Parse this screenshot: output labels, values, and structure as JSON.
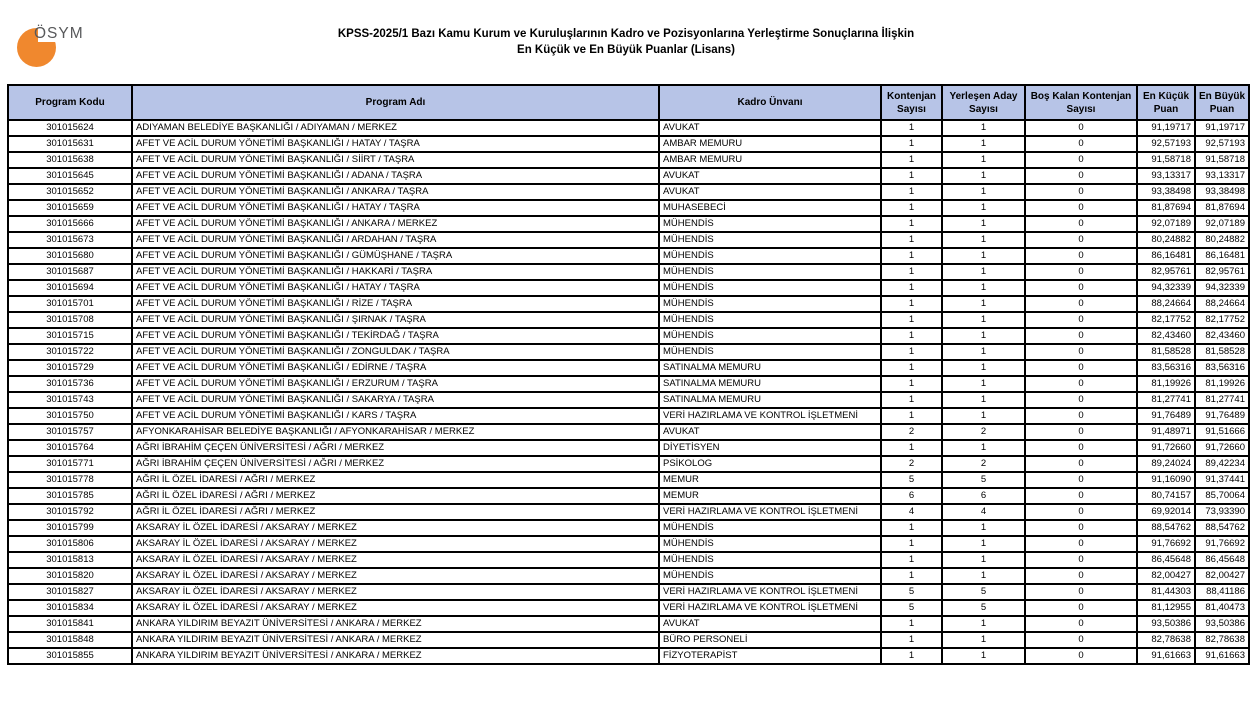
{
  "page": {
    "logo_text": "ÖSYM",
    "title_line1": "KPSS-2025/1 Bazı Kamu Kurum ve Kuruluşlarının Kadro ve Pozisyonlarına Yerleştirme Sonuçlarına İlişkin",
    "title_line2": "En Küçük ve En Büyük Puanlar (Lisans)"
  },
  "colors": {
    "logo_orange": "#f0882e",
    "logo_text_gray": "#58595b",
    "table_header_bg": "#b7c4e7",
    "table_border": "#000000"
  },
  "table": {
    "columns": [
      "Program Kodu",
      "Program Adı",
      "Kadro Ünvanı",
      "Kontenjan Sayısı",
      "Yerleşen Aday Sayısı",
      "Boş Kalan Kontenjan Sayısı",
      "En Küçük Puan",
      "En Büyük Puan"
    ],
    "column_names": [
      "program-kodu-cell",
      "program-adi-cell",
      "kadro-unvani-cell",
      "kontenjan-sayisi-cell",
      "yerlesen-aday-sayisi-cell",
      "bos-kalan-kontenjan-sayisi-cell",
      "en-kucuk-puan-cell",
      "en-buyuk-puan-cell"
    ],
    "rows": [
      [
        "301015624",
        "ADIYAMAN BELEDİYE BAŞKANLIĞI / ADIYAMAN / MERKEZ",
        "AVUKAT",
        "1",
        "1",
        "0",
        "91,19717",
        "91,19717"
      ],
      [
        "301015631",
        "AFET VE ACİL DURUM YÖNETİMİ BAŞKANLIĞI / HATAY / TAŞRA",
        "AMBAR MEMURU",
        "1",
        "1",
        "0",
        "92,57193",
        "92,57193"
      ],
      [
        "301015638",
        "AFET VE ACİL DURUM YÖNETİMİ BAŞKANLIĞI / SİİRT / TAŞRA",
        "AMBAR MEMURU",
        "1",
        "1",
        "0",
        "91,58718",
        "91,58718"
      ],
      [
        "301015645",
        "AFET VE ACİL DURUM YÖNETİMİ BAŞKANLIĞI / ADANA / TAŞRA",
        "AVUKAT",
        "1",
        "1",
        "0",
        "93,13317",
        "93,13317"
      ],
      [
        "301015652",
        "AFET VE ACİL DURUM YÖNETİMİ BAŞKANLIĞI / ANKARA / TAŞRA",
        "AVUKAT",
        "1",
        "1",
        "0",
        "93,38498",
        "93,38498"
      ],
      [
        "301015659",
        "AFET VE ACİL DURUM YÖNETİMİ BAŞKANLIĞI / HATAY / TAŞRA",
        "MUHASEBECİ",
        "1",
        "1",
        "0",
        "81,87694",
        "81,87694"
      ],
      [
        "301015666",
        "AFET VE ACİL DURUM YÖNETİMİ BAŞKANLIĞI / ANKARA / MERKEZ",
        "MÜHENDİS",
        "1",
        "1",
        "0",
        "92,07189",
        "92,07189"
      ],
      [
        "301015673",
        "AFET VE ACİL DURUM YÖNETİMİ BAŞKANLIĞI / ARDAHAN / TAŞRA",
        "MÜHENDİS",
        "1",
        "1",
        "0",
        "80,24882",
        "80,24882"
      ],
      [
        "301015680",
        "AFET VE ACİL DURUM YÖNETİMİ BAŞKANLIĞI / GÜMÜŞHANE / TAŞRA",
        "MÜHENDİS",
        "1",
        "1",
        "0",
        "86,16481",
        "86,16481"
      ],
      [
        "301015687",
        "AFET VE ACİL DURUM YÖNETİMİ BAŞKANLIĞI / HAKKARİ / TAŞRA",
        "MÜHENDİS",
        "1",
        "1",
        "0",
        "82,95761",
        "82,95761"
      ],
      [
        "301015694",
        "AFET VE ACİL DURUM YÖNETİMİ BAŞKANLIĞI / HATAY / TAŞRA",
        "MÜHENDİS",
        "1",
        "1",
        "0",
        "94,32339",
        "94,32339"
      ],
      [
        "301015701",
        "AFET VE ACİL DURUM YÖNETİMİ BAŞKANLIĞI / RİZE / TAŞRA",
        "MÜHENDİS",
        "1",
        "1",
        "0",
        "88,24664",
        "88,24664"
      ],
      [
        "301015708",
        "AFET VE ACİL DURUM YÖNETİMİ BAŞKANLIĞI / ŞIRNAK / TAŞRA",
        "MÜHENDİS",
        "1",
        "1",
        "0",
        "82,17752",
        "82,17752"
      ],
      [
        "301015715",
        "AFET VE ACİL DURUM YÖNETİMİ BAŞKANLIĞI / TEKİRDAĞ / TAŞRA",
        "MÜHENDİS",
        "1",
        "1",
        "0",
        "82,43460",
        "82,43460"
      ],
      [
        "301015722",
        "AFET VE ACİL DURUM YÖNETİMİ BAŞKANLIĞI / ZONGULDAK / TAŞRA",
        "MÜHENDİS",
        "1",
        "1",
        "0",
        "81,58528",
        "81,58528"
      ],
      [
        "301015729",
        "AFET VE ACİL DURUM YÖNETİMİ BAŞKANLIĞI / EDİRNE / TAŞRA",
        "SATINALMA MEMURU",
        "1",
        "1",
        "0",
        "83,56316",
        "83,56316"
      ],
      [
        "301015736",
        "AFET VE ACİL DURUM YÖNETİMİ BAŞKANLIĞI / ERZURUM / TAŞRA",
        "SATINALMA MEMURU",
        "1",
        "1",
        "0",
        "81,19926",
        "81,19926"
      ],
      [
        "301015743",
        "AFET VE ACİL DURUM YÖNETİMİ BAŞKANLIĞI / SAKARYA / TAŞRA",
        "SATINALMA MEMURU",
        "1",
        "1",
        "0",
        "81,27741",
        "81,27741"
      ],
      [
        "301015750",
        "AFET VE ACİL DURUM YÖNETİMİ BAŞKANLIĞI / KARS / TAŞRA",
        "VERİ HAZIRLAMA VE KONTROL İŞLETMENİ",
        "1",
        "1",
        "0",
        "91,76489",
        "91,76489"
      ],
      [
        "301015757",
        "AFYONKARAHİSAR BELEDİYE BAŞKANLIĞI / AFYONKARAHİSAR / MERKEZ",
        "AVUKAT",
        "2",
        "2",
        "0",
        "91,48971",
        "91,51666"
      ],
      [
        "301015764",
        "AĞRI İBRAHİM ÇEÇEN ÜNİVERSİTESİ / AĞRI / MERKEZ",
        "DİYETİSYEN",
        "1",
        "1",
        "0",
        "91,72660",
        "91,72660"
      ],
      [
        "301015771",
        "AĞRI İBRAHİM ÇEÇEN ÜNİVERSİTESİ / AĞRI / MERKEZ",
        "PSİKOLOG",
        "2",
        "2",
        "0",
        "89,24024",
        "89,42234"
      ],
      [
        "301015778",
        "AĞRI İL ÖZEL İDARESİ / AĞRI / MERKEZ",
        "MEMUR",
        "5",
        "5",
        "0",
        "91,16090",
        "91,37441"
      ],
      [
        "301015785",
        "AĞRI İL ÖZEL İDARESİ / AĞRI / MERKEZ",
        "MEMUR",
        "6",
        "6",
        "0",
        "80,74157",
        "85,70064"
      ],
      [
        "301015792",
        "AĞRI İL ÖZEL İDARESİ / AĞRI / MERKEZ",
        "VERİ HAZIRLAMA VE KONTROL İŞLETMENİ",
        "4",
        "4",
        "0",
        "69,92014",
        "73,93390"
      ],
      [
        "301015799",
        "AKSARAY İL ÖZEL İDARESİ / AKSARAY / MERKEZ",
        "MÜHENDİS",
        "1",
        "1",
        "0",
        "88,54762",
        "88,54762"
      ],
      [
        "301015806",
        "AKSARAY İL ÖZEL İDARESİ / AKSARAY / MERKEZ",
        "MÜHENDİS",
        "1",
        "1",
        "0",
        "91,76692",
        "91,76692"
      ],
      [
        "301015813",
        "AKSARAY İL ÖZEL İDARESİ / AKSARAY / MERKEZ",
        "MÜHENDİS",
        "1",
        "1",
        "0",
        "86,45648",
        "86,45648"
      ],
      [
        "301015820",
        "AKSARAY İL ÖZEL İDARESİ / AKSARAY / MERKEZ",
        "MÜHENDİS",
        "1",
        "1",
        "0",
        "82,00427",
        "82,00427"
      ],
      [
        "301015827",
        "AKSARAY İL ÖZEL İDARESİ / AKSARAY / MERKEZ",
        "VERİ HAZIRLAMA VE KONTROL İŞLETMENİ",
        "5",
        "5",
        "0",
        "81,44303",
        "88,41186"
      ],
      [
        "301015834",
        "AKSARAY İL ÖZEL İDARESİ / AKSARAY / MERKEZ",
        "VERİ HAZIRLAMA VE KONTROL İŞLETMENİ",
        "5",
        "5",
        "0",
        "81,12955",
        "81,40473"
      ],
      [
        "301015841",
        "ANKARA YILDIRIM BEYAZIT ÜNİVERSİTESİ / ANKARA / MERKEZ",
        "AVUKAT",
        "1",
        "1",
        "0",
        "93,50386",
        "93,50386"
      ],
      [
        "301015848",
        "ANKARA YILDIRIM BEYAZIT ÜNİVERSİTESİ / ANKARA / MERKEZ",
        "BÜRO PERSONELİ",
        "1",
        "1",
        "0",
        "82,78638",
        "82,78638"
      ],
      [
        "301015855",
        "ANKARA YILDIRIM BEYAZIT ÜNİVERSİTESİ / ANKARA / MERKEZ",
        "FİZYOTERAPİST",
        "1",
        "1",
        "0",
        "91,61663",
        "91,61663"
      ]
    ]
  }
}
